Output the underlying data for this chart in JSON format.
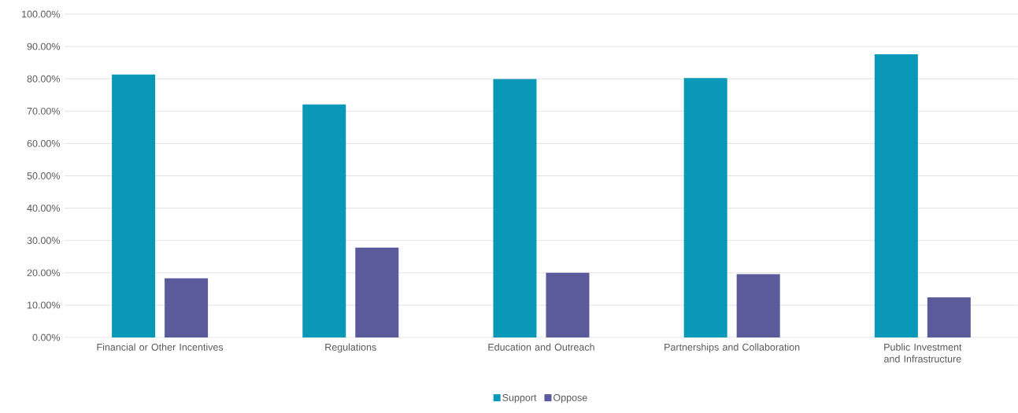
{
  "chart_data": {
    "type": "bar",
    "categories": [
      "Financial or Other Incentives",
      "Regulations",
      "Education and Outreach",
      "Partnerships and Collaboration",
      "Public Investment and Infrastructure"
    ],
    "series": [
      {
        "name": "Support",
        "color": "#0a98b9",
        "values": [
          81.3,
          72.1,
          79.9,
          80.2,
          87.6
        ]
      },
      {
        "name": "Oppose",
        "color": "#5b5a9b",
        "values": [
          18.3,
          27.8,
          20.0,
          19.6,
          12.4
        ]
      }
    ],
    "ylim": [
      0,
      100
    ],
    "yticks": [
      {
        "value": 0,
        "label": "0.00%"
      },
      {
        "value": 10,
        "label": "10.00%"
      },
      {
        "value": 20,
        "label": "20.00%"
      },
      {
        "value": 30,
        "label": "30.00%"
      },
      {
        "value": 40,
        "label": "40.00%"
      },
      {
        "value": 50,
        "label": "50.00%"
      },
      {
        "value": 60,
        "label": "60.00%"
      },
      {
        "value": 70,
        "label": "70.00%"
      },
      {
        "value": 80,
        "label": "80.00%"
      },
      {
        "value": 90,
        "label": "90.00%"
      },
      {
        "value": 100,
        "label": "100.00%"
      }
    ],
    "grid": "y",
    "legend": "bottom"
  }
}
